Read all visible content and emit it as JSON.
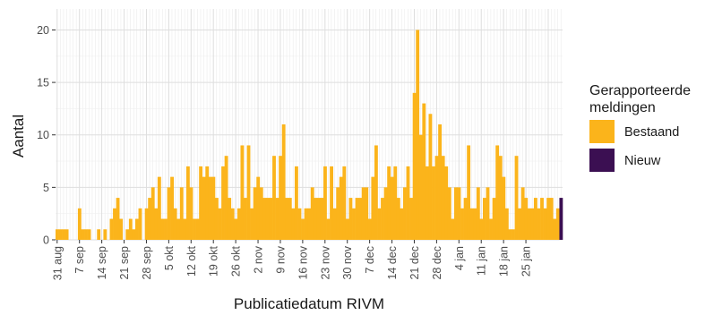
{
  "chart_data": {
    "type": "bar",
    "stacked": true,
    "xlabel": "Publicatiedatum RIVM",
    "ylabel": "Aantal",
    "ylim": [
      0,
      22
    ],
    "yticks": [
      0,
      5,
      10,
      15,
      20
    ],
    "grid": true,
    "start_date": "31 aug",
    "xtick_labels": [
      "31 aug",
      "7 sep",
      "14 sep",
      "21 sep",
      "28 sep",
      "5 okt",
      "12 okt",
      "19 okt",
      "26 okt",
      "2 nov",
      "9 nov",
      "16 nov",
      "23 nov",
      "30 nov",
      "7 dec",
      "14 dec",
      "21 dec",
      "28 dec",
      "4 jan",
      "11 jan",
      "18 jan",
      "25 jan"
    ],
    "legend": {
      "title_lines": [
        "Gerapporteerde",
        "meldingen"
      ],
      "position": "right",
      "entries": [
        {
          "label": "Bestaand",
          "color": "#fbb41b"
        },
        {
          "label": "Nieuw",
          "color": "#3b0f52"
        }
      ]
    },
    "series": [
      {
        "name": "Bestaand",
        "color": "#fbb41b",
        "values": [
          1,
          1,
          1,
          1,
          0,
          0,
          0,
          3,
          1,
          1,
          1,
          0,
          0,
          1,
          0,
          1,
          0,
          2,
          3,
          4,
          2,
          0,
          1,
          2,
          1,
          2,
          3,
          0,
          3,
          4,
          5,
          3,
          6,
          2,
          2,
          5,
          6,
          3,
          2,
          5,
          2,
          7,
          5,
          2,
          2,
          7,
          6,
          7,
          6,
          6,
          4,
          3,
          7,
          8,
          4,
          3,
          2,
          3,
          9,
          4,
          9,
          3,
          5,
          6,
          5,
          4,
          4,
          4,
          8,
          4,
          8,
          11,
          4,
          4,
          3,
          7,
          3,
          2,
          3,
          3,
          5,
          4,
          4,
          4,
          7,
          2,
          7,
          3,
          5,
          6,
          7,
          2,
          4,
          3,
          4,
          4,
          5,
          5,
          2,
          6,
          9,
          3,
          4,
          5,
          7,
          6,
          7,
          4,
          3,
          5,
          7,
          4,
          14,
          20,
          10,
          13,
          7,
          12,
          7,
          8,
          11,
          8,
          7,
          5,
          2,
          5,
          5,
          3,
          4,
          9,
          3,
          3,
          5,
          2,
          4,
          5,
          2,
          4,
          9,
          8,
          6,
          3,
          1,
          1,
          8,
          3,
          5,
          4,
          3,
          3,
          4,
          3,
          4,
          3,
          4,
          4,
          2,
          3,
          0
        ]
      },
      {
        "name": "Nieuw",
        "color": "#3b0f52",
        "values": [
          0,
          0,
          0,
          0,
          0,
          0,
          0,
          0,
          0,
          0,
          0,
          0,
          0,
          0,
          0,
          0,
          0,
          0,
          0,
          0,
          0,
          0,
          0,
          0,
          0,
          0,
          0,
          0,
          0,
          0,
          0,
          0,
          0,
          0,
          0,
          0,
          0,
          0,
          0,
          0,
          0,
          0,
          0,
          0,
          0,
          0,
          0,
          0,
          0,
          0,
          0,
          0,
          0,
          0,
          0,
          0,
          0,
          0,
          0,
          0,
          0,
          0,
          0,
          0,
          0,
          0,
          0,
          0,
          0,
          0,
          0,
          0,
          0,
          0,
          0,
          0,
          0,
          0,
          0,
          0,
          0,
          0,
          0,
          0,
          0,
          0,
          0,
          0,
          0,
          0,
          0,
          0,
          0,
          0,
          0,
          0,
          0,
          0,
          0,
          0,
          0,
          0,
          0,
          0,
          0,
          0,
          0,
          0,
          0,
          0,
          0,
          0,
          0,
          0,
          0,
          0,
          0,
          0,
          0,
          0,
          0,
          0,
          0,
          0,
          0,
          0,
          0,
          0,
          0,
          0,
          0,
          0,
          0,
          0,
          0,
          0,
          0,
          0,
          0,
          0,
          0,
          0,
          0,
          0,
          0,
          0,
          0,
          0,
          0,
          0,
          0,
          0,
          0,
          0,
          0,
          0,
          0,
          0,
          4
        ]
      }
    ]
  }
}
